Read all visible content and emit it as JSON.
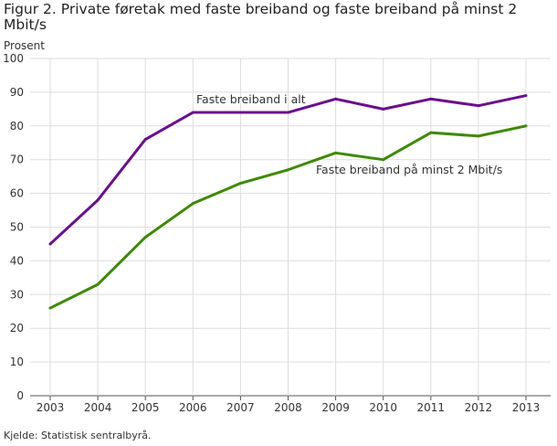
{
  "title": "Figur 2. Private føretak med faste breiband og faste breiband på minst 2 Mbit/s",
  "source": "Kjelde: Statistisk sentralbyrå.",
  "chart_data": {
    "type": "line",
    "title": "Figur 2. Private føretak med faste breiband og faste breiband på minst 2 Mbit/s",
    "ylabel": "Prosent",
    "xlabel": "",
    "x": [
      2003,
      2004,
      2005,
      2006,
      2007,
      2008,
      2009,
      2010,
      2011,
      2012,
      2013
    ],
    "ylim": [
      0,
      100
    ],
    "yticks": [
      0,
      10,
      20,
      30,
      40,
      50,
      60,
      70,
      80,
      90,
      100
    ],
    "grid": true,
    "series": [
      {
        "name": "Faste breiband i alt",
        "color": "#6a0f8e",
        "values": [
          45,
          58,
          76,
          84,
          84,
          84,
          88,
          85,
          88,
          86,
          89
        ]
      },
      {
        "name": "Faste breiband på minst 2 Mbit/s",
        "color": "#3d8a00",
        "values": [
          26,
          33,
          47,
          57,
          63,
          67,
          72,
          70,
          78,
          77,
          80
        ]
      }
    ]
  }
}
